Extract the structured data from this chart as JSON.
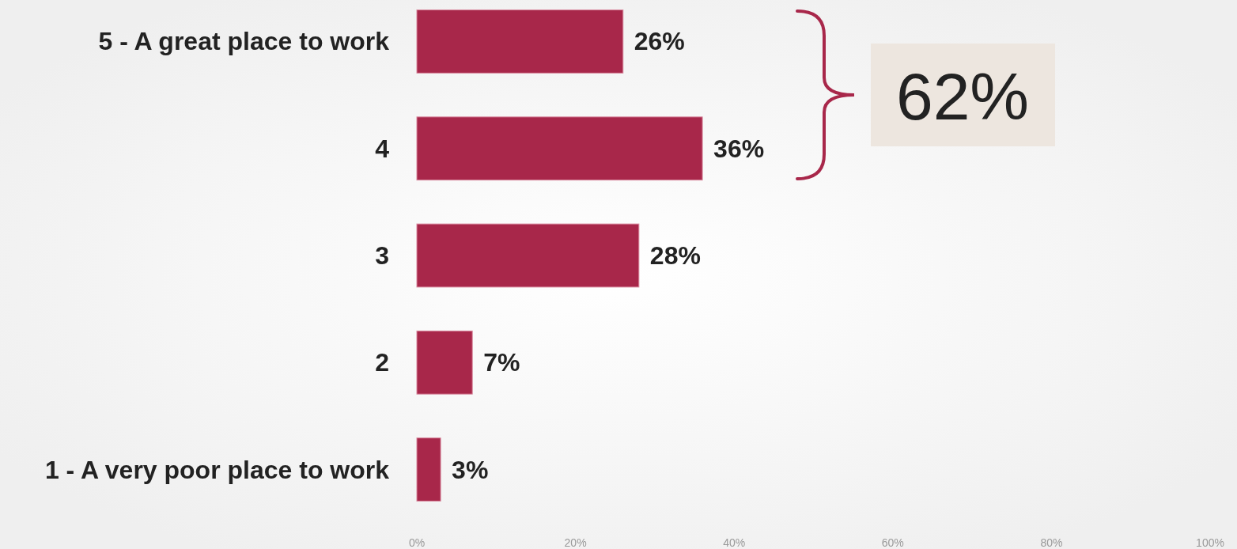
{
  "chart_data": {
    "type": "bar",
    "orientation": "horizontal",
    "categories": [
      "5 - A great place to work",
      "4",
      "3",
      "2",
      "1 - A very poor place to work"
    ],
    "values": [
      26,
      36,
      28,
      7,
      3
    ],
    "value_labels": [
      "26%",
      "36%",
      "28%",
      "7%",
      "3%"
    ],
    "color": "#a8274a",
    "xlim": [
      0,
      100
    ],
    "xticks": [
      {
        "value": 0,
        "label": "0%"
      },
      {
        "value": 20,
        "label": "20%"
      },
      {
        "value": 40,
        "label": "40%"
      },
      {
        "value": 60,
        "label": "60%"
      },
      {
        "value": 80,
        "label": "80%"
      },
      {
        "value": 100,
        "label": "100%"
      }
    ],
    "grid": false,
    "annotations": [
      "62%"
    ]
  }
}
